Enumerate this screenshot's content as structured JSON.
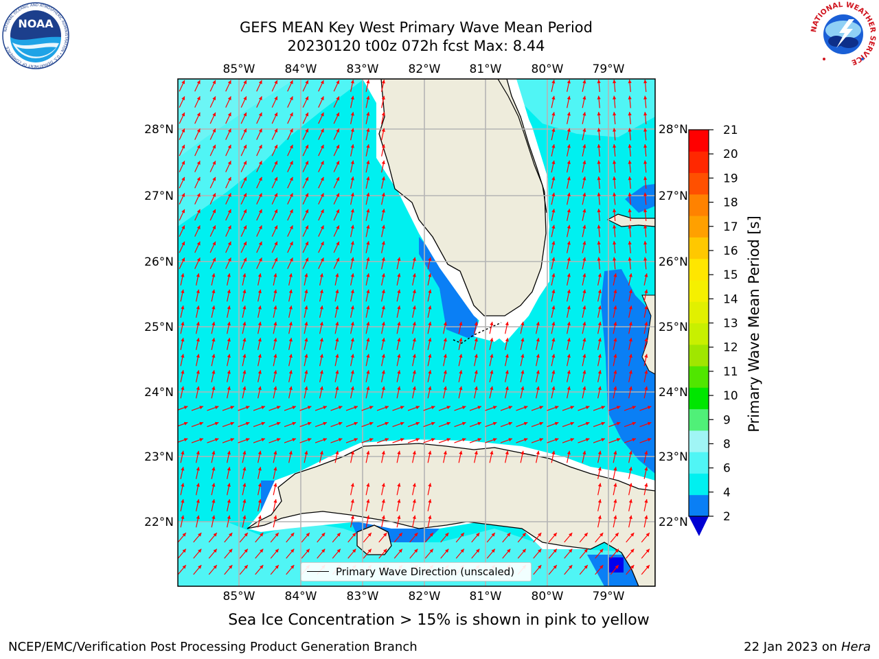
{
  "title": {
    "line1": "GEFS MEAN Key West Primary Wave Mean Period",
    "line2": "20230120 t00z 072h fcst   Max: 8.44"
  },
  "logos": {
    "noaa": "NOAA",
    "noaa_ring": "NATIONAL OCEANIC AND ATMOSPHERIC ADMINISTRATION • U.S. DEPARTMENT OF COMMERCE",
    "nws_ring": "NATIONAL WEATHER SERVICE"
  },
  "map": {
    "lon_ticks": [
      "85°W",
      "84°W",
      "83°W",
      "82°W",
      "81°W",
      "80°W",
      "79°W"
    ],
    "lat_ticks": [
      "28°N",
      "27°N",
      "26°N",
      "25°N",
      "24°N",
      "23°N",
      "22°N"
    ],
    "legend": "Primary Wave Direction (unscaled)",
    "colors": {
      "land": "#eeecdc",
      "ocean_main": "#00f0f0",
      "ocean_light": "#50f5f5",
      "ocean_blue": "#0a7ff5",
      "ocean_deep": "#0000ee",
      "arrow": "#ff0000",
      "grid": "#b4b4b4"
    }
  },
  "colorbar": {
    "label": "Primary Wave Mean Period [s]",
    "ticks": [
      "21",
      "20",
      "19",
      "18",
      "17",
      "16",
      "15",
      "14",
      "13",
      "12",
      "11",
      "10",
      "9",
      "8",
      "6",
      "4",
      "2"
    ],
    "colors_bottom_to_top": [
      "#0a7ff5",
      "#00f0f0",
      "#50f5f5",
      "#a0f5f5",
      "#50f078",
      "#00e600",
      "#50e600",
      "#a0e600",
      "#c8f000",
      "#e1f000",
      "#f5f000",
      "#ffe600",
      "#ffc800",
      "#ffa000",
      "#ff8200",
      "#ff5000",
      "#ff2800",
      "#ff0000"
    ],
    "under_color": "#0000d2"
  },
  "note": "Sea Ice Concentration > 15% is shown in pink to yellow",
  "footer": {
    "left": "NCEP/EMC/Verification Post Processing Product Generation Branch",
    "right_prefix": "22 Jan 2023 on ",
    "right_host": "Hera"
  }
}
